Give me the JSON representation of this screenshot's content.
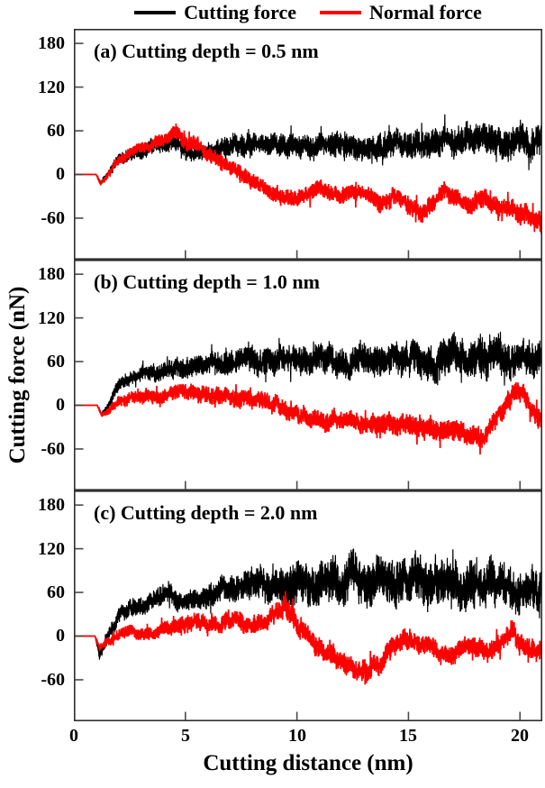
{
  "legend": {
    "series": [
      {
        "label": "Cutting force",
        "color": "#000000"
      },
      {
        "label": "Normal force",
        "color": "#ff0000"
      }
    ]
  },
  "axes": {
    "x_label": "Cutting distance (nm)",
    "y_label": "Cutting force (nN)",
    "x_ticks": [
      "0",
      "5",
      "10",
      "15",
      "20"
    ],
    "y_ticks": [
      "180",
      "120",
      "60",
      "0",
      "-60"
    ],
    "x_range": [
      0,
      21
    ],
    "y_range": [
      -117,
      200
    ],
    "frame_color": "#2e2e2e",
    "tick_color": "#4a4a4a"
  },
  "chart_data": [
    {
      "type": "line",
      "title": "(a) Cutting depth = 0.5 nm",
      "series": [
        {
          "name": "Cutting force",
          "color": "#000000",
          "keypoints": {
            "x": [
              0,
              1.0,
              1.2,
              1.45,
              2,
              3,
              4,
              4.6,
              5.2,
              6,
              7,
              8,
              10,
              12,
              14,
              16,
              18,
              19,
              20,
              21
            ],
            "mean": [
              0,
              0,
              -12,
              -4,
              24,
              32,
              40,
              44,
              30,
              34,
              38,
              40,
              40,
              41,
              41,
              42,
              46,
              47,
              46,
              47
            ],
            "amp": [
              0,
              0,
              3,
              5,
              8,
              10,
              11,
              12,
              10,
              12,
              14,
              15,
              16,
              17,
              18,
              18,
              20,
              21,
              21,
              21
            ]
          }
        },
        {
          "name": "Normal force",
          "color": "#ff0000",
          "keypoints": {
            "x": [
              0,
              1.0,
              1.2,
              1.45,
              2,
              3,
              4,
              4.6,
              5.0,
              5.6,
              6.2,
              7,
              7.6,
              8.4,
              9.2,
              10,
              10.7,
              11.3,
              12,
              12.6,
              13.2,
              13.8,
              14.4,
              15.0,
              15.5,
              16.1,
              16.6,
              17.2,
              17.8,
              18.4,
              19,
              19.6,
              20.2,
              20.7,
              21
            ],
            "mean": [
              0,
              0,
              -13,
              -5,
              20,
              34,
              46,
              56,
              50,
              40,
              26,
              10,
              -2,
              -16,
              -30,
              -33,
              -24,
              -20,
              -30,
              -26,
              -32,
              -38,
              -30,
              -44,
              -52,
              -38,
              -24,
              -32,
              -40,
              -34,
              -42,
              -48,
              -56,
              -62,
              -68
            ],
            "amp": [
              0,
              0,
              3,
              4,
              7,
              8,
              9,
              11,
              11,
              10,
              10,
              10,
              10,
              10,
              11,
              11,
              11,
              11,
              11,
              11,
              11,
              12,
              12,
              12,
              12,
              12,
              12,
              12,
              13,
              13,
              13,
              13,
              14,
              15,
              16
            ]
          }
        }
      ]
    },
    {
      "type": "line",
      "title": "(b) Cutting depth = 1.0 nm",
      "series": [
        {
          "name": "Cutting force",
          "color": "#000000",
          "keypoints": {
            "x": [
              0,
              1.05,
              1.25,
              1.5,
              2,
              3,
              4,
              5,
              6,
              7,
              8,
              9,
              10,
              11,
              12,
              13,
              14,
              15,
              16,
              17,
              17.6,
              18.2,
              18.8,
              19.4,
              20,
              20.5,
              21
            ],
            "mean": [
              0,
              0,
              -13,
              -2,
              28,
              42,
              48,
              54,
              58,
              60,
              62,
              60,
              62,
              60,
              62,
              61,
              62,
              60,
              62,
              68,
              60,
              72,
              76,
              60,
              62,
              64,
              65
            ],
            "amp": [
              0,
              0,
              3,
              6,
              9,
              10,
              12,
              13,
              14,
              16,
              17,
              18,
              19,
              19,
              20,
              21,
              21,
              22,
              23,
              25,
              25,
              27,
              28,
              25,
              23,
              22,
              22
            ]
          }
        },
        {
          "name": "Normal force",
          "color": "#ff0000",
          "keypoints": {
            "x": [
              0,
              1.05,
              1.25,
              1.6,
              2,
              3,
              4,
              5,
              5.6,
              6.2,
              7,
              8,
              9,
              9.6,
              10.2,
              11,
              12,
              12.6,
              13.2,
              14,
              14.5,
              15.1,
              16,
              16.6,
              17.1,
              17.7,
              18.3,
              18.8,
              19.3,
              19.8,
              20.3,
              20.7,
              21
            ],
            "mean": [
              0,
              0,
              -14,
              -6,
              7,
              12,
              12,
              15,
              18,
              14,
              12,
              8,
              1,
              -6,
              -13,
              -18,
              -25,
              -20,
              -28,
              -25,
              -32,
              -28,
              -31,
              -36,
              -30,
              -43,
              -45,
              -28,
              0,
              20,
              5,
              -12,
              -20
            ],
            "amp": [
              0,
              0,
              3,
              5,
              8,
              9,
              10,
              11,
              12,
              12,
              12,
              12,
              12,
              12,
              12,
              13,
              13,
              13,
              13,
              14,
              14,
              14,
              14,
              14,
              14,
              14,
              14,
              13,
              13,
              13,
              13,
              13,
              13
            ]
          }
        }
      ]
    },
    {
      "type": "line",
      "title": "(c) Cutting depth = 2.0 nm",
      "series": [
        {
          "name": "Cutting force",
          "color": "#000000",
          "keypoints": {
            "x": [
              0,
              0.95,
              1.15,
              1.4,
              1.7,
              2,
              2.6,
              3.2,
              3.8,
              4.2,
              4.7,
              5.2,
              6,
              6.6,
              7.2,
              8,
              9,
              10,
              11,
              12,
              12.6,
              13.2,
              14,
              15,
              15.6,
              16.2,
              17,
              18,
              19,
              20,
              20.5,
              21
            ],
            "mean": [
              0,
              0,
              -26,
              -12,
              10,
              28,
              38,
              44,
              54,
              60,
              46,
              48,
              58,
              66,
              62,
              70,
              70,
              70,
              74,
              78,
              80,
              74,
              76,
              74,
              70,
              78,
              72,
              72,
              70,
              66,
              63,
              66
            ],
            "amp": [
              0,
              0,
              7,
              8,
              9,
              11,
              12,
              12,
              13,
              14,
              13,
              13,
              15,
              17,
              18,
              21,
              24,
              26,
              28,
              30,
              30,
              30,
              30,
              31,
              31,
              32,
              30,
              30,
              28,
              28,
              28,
              28
            ]
          }
        },
        {
          "name": "Normal force",
          "color": "#ff0000",
          "keypoints": {
            "x": [
              0,
              0.95,
              1.15,
              1.45,
              1.8,
              2.4,
              3,
              3.6,
              4.2,
              4.8,
              5.4,
              6,
              6.6,
              7.2,
              7.8,
              8.4,
              9,
              9.4,
              9.8,
              10.2,
              10.8,
              11.4,
              12,
              12.6,
              13.1,
              13.6,
              14.1,
              14.6,
              15.2,
              15.8,
              16.4,
              16.9,
              17.4,
              18,
              18.6,
              19.2,
              19.7,
              20.2,
              20.7,
              21
            ],
            "mean": [
              0,
              0,
              -16,
              -7,
              0,
              4,
              2,
              6,
              8,
              16,
              20,
              12,
              16,
              22,
              16,
              20,
              30,
              35,
              24,
              8,
              -8,
              -24,
              -38,
              -46,
              -50,
              -42,
              -24,
              -8,
              -10,
              -13,
              -22,
              -28,
              -14,
              -16,
              -20,
              -8,
              6,
              -10,
              -20,
              -26
            ],
            "amp": [
              0,
              0,
              4,
              5,
              7,
              8,
              9,
              9,
              10,
              11,
              12,
              12,
              12,
              13,
              13,
              13,
              14,
              15,
              14,
              13,
              13,
              13,
              14,
              14,
              15,
              14,
              14,
              13,
              13,
              13,
              13,
              13,
              13,
              13,
              13,
              13,
              13,
              13,
              14,
              15
            ]
          }
        }
      ]
    }
  ]
}
